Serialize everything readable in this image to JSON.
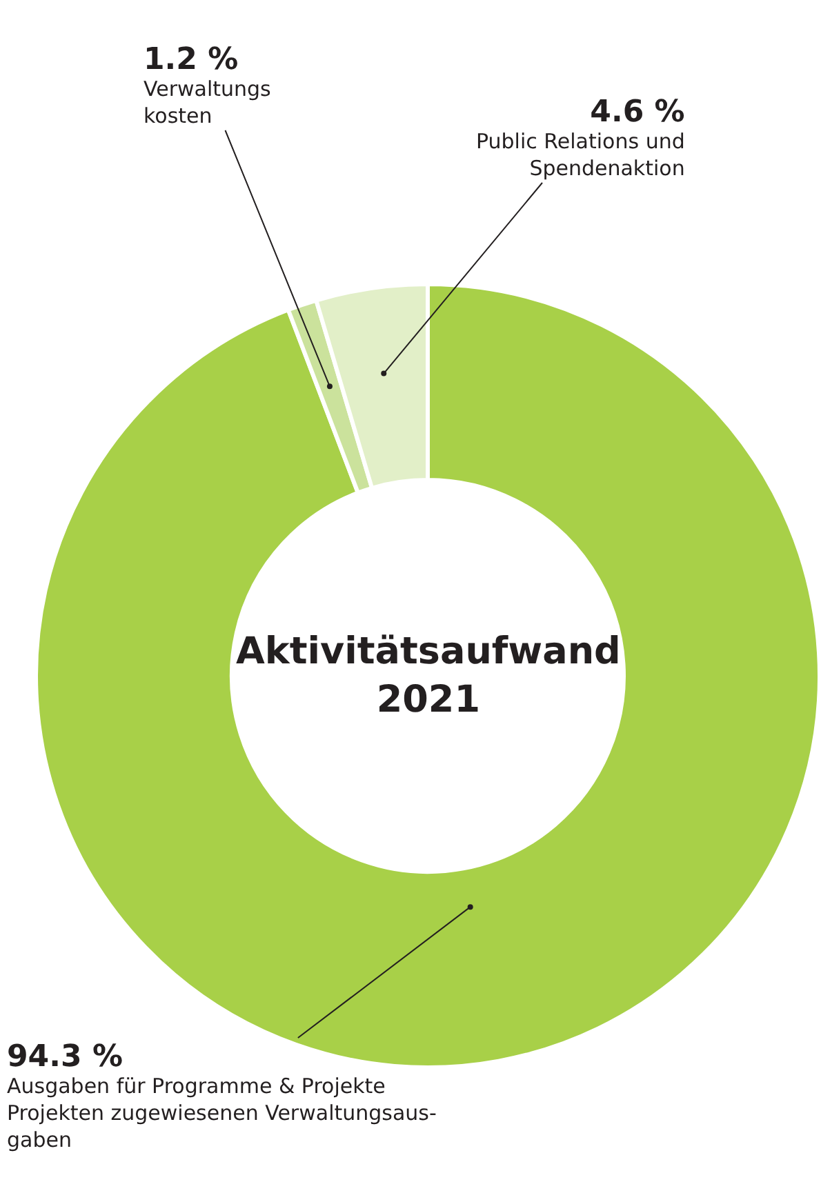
{
  "chart_data": {
    "type": "donut",
    "title": "Aktivitätsaufwand\n2021",
    "categories": [
      "Ausgaben für Programme & Projekte\nProjekten zugewiesenen Verwaltungsaus-\ngaben",
      "Verwaltungs\nkosten",
      "Public Relations und\nSpendenaktion"
    ],
    "values": [
      94.3,
      1.2,
      4.6
    ],
    "colors": [
      "#a8d048",
      "#cbe29c",
      "#e2efc8"
    ],
    "value_labels": [
      "94.3 %",
      "1.2 %",
      "4.6 %"
    ],
    "legend": false
  }
}
